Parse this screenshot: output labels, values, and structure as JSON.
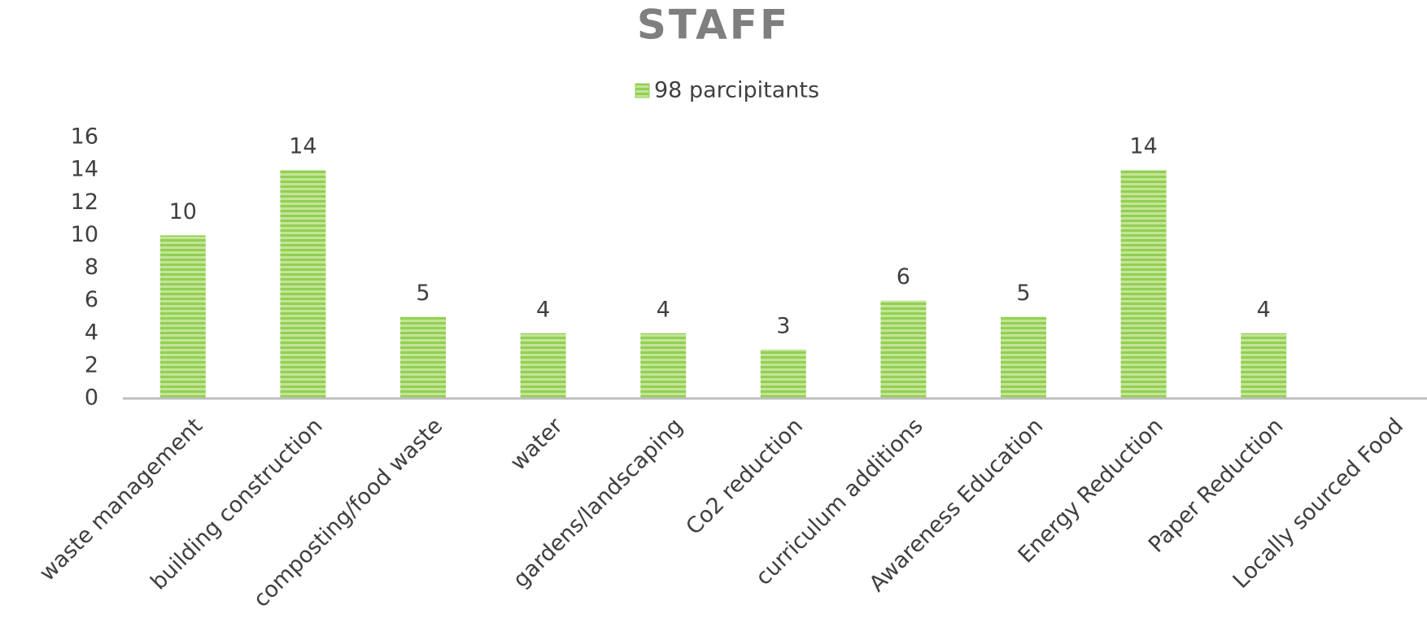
{
  "chart_data": {
    "type": "bar",
    "title": "STAFF",
    "categories": [
      "waste management",
      "building construction",
      "composting/food waste",
      "water",
      "gardens/landscaping",
      "Co2 reduction",
      "curriculum additions",
      "Awareness Education",
      "Energy Reduction",
      "Paper Reduction",
      "Locally sourced Food"
    ],
    "series": [
      {
        "name": "98 parcipitants",
        "color": "#92d050",
        "values": [
          10,
          14,
          5,
          4,
          4,
          3,
          6,
          5,
          14,
          4,
          null
        ]
      }
    ],
    "ylim": [
      0,
      16
    ],
    "yticks": [
      0,
      2,
      4,
      6,
      8,
      10,
      12,
      14,
      16
    ],
    "grid": false,
    "legend": "top"
  }
}
